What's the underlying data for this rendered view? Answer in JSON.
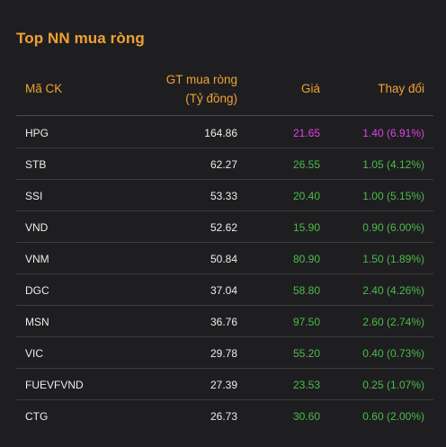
{
  "panel": {
    "title": "Top NN mua ròng"
  },
  "table": {
    "headers": {
      "code": "Mã CK",
      "value_line1": "GT mua ròng",
      "value_line2": "(Tỷ đồng)",
      "price": "Giá",
      "change": "Thay đổi"
    },
    "rows": [
      {
        "code": "HPG",
        "value": "164.86",
        "price": "21.65",
        "change": "1.40 (6.91%)",
        "color": "#e040e6"
      },
      {
        "code": "STB",
        "value": "62.27",
        "price": "26.55",
        "change": "1.05 (4.12%)",
        "color": "#4cbb4a"
      },
      {
        "code": "SSI",
        "value": "53.33",
        "price": "20.40",
        "change": "1.00 (5.15%)",
        "color": "#4cbb4a"
      },
      {
        "code": "VND",
        "value": "52.62",
        "price": "15.90",
        "change": "0.90 (6.00%)",
        "color": "#4cbb4a"
      },
      {
        "code": "VNM",
        "value": "50.84",
        "price": "80.90",
        "change": "1.50 (1.89%)",
        "color": "#4cbb4a"
      },
      {
        "code": "DGC",
        "value": "37.04",
        "price": "58.80",
        "change": "2.40 (4.26%)",
        "color": "#4cbb4a"
      },
      {
        "code": "MSN",
        "value": "36.76",
        "price": "97.50",
        "change": "2.60 (2.74%)",
        "color": "#4cbb4a"
      },
      {
        "code": "VIC",
        "value": "29.78",
        "price": "55.20",
        "change": "0.40 (0.73%)",
        "color": "#4cbb4a"
      },
      {
        "code": "FUEVFVND",
        "value": "27.39",
        "price": "23.53",
        "change": "0.25 (1.07%)",
        "color": "#4cbb4a"
      },
      {
        "code": "CTG",
        "value": "26.73",
        "price": "30.60",
        "change": "0.60 (2.00%)",
        "color": "#4cbb4a"
      }
    ]
  },
  "colors": {
    "accent": "#f0a133",
    "ceiling": "#e040e6",
    "up": "#4cbb4a",
    "background": "#1e1e20"
  }
}
